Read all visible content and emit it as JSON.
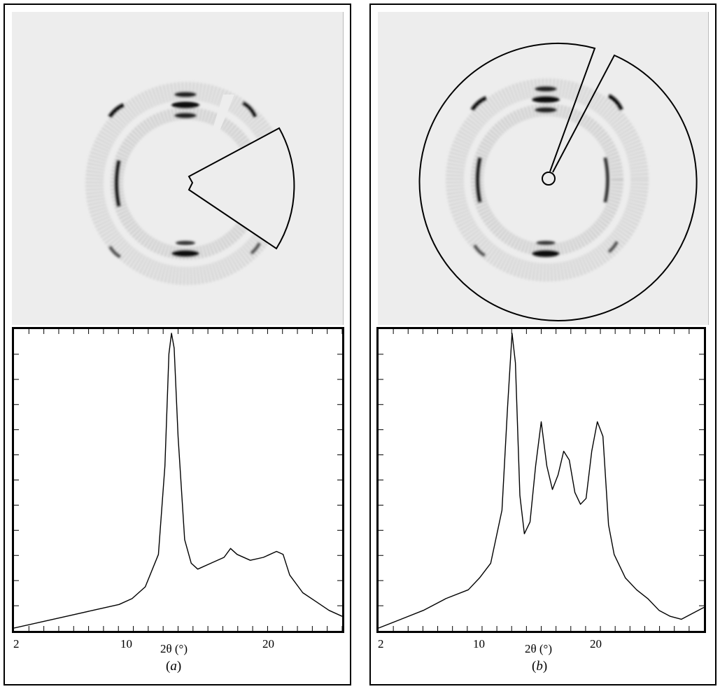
{
  "chart_data": [
    {
      "type": "line",
      "panel_label": "a",
      "xlabel": "2θ (°)",
      "ylabel": "",
      "x_ticks": [
        "2",
        "10",
        "20"
      ],
      "xlim": [
        2,
        27
      ],
      "ylim": [
        0,
        1
      ],
      "series": [
        {
          "x": [
            2,
            4,
            6,
            8,
            10,
            11,
            12,
            13,
            13.5,
            13.8,
            14.0,
            14.2,
            14.5,
            15,
            15.5,
            16,
            17,
            18,
            18.5,
            19,
            20,
            21,
            22,
            22.5,
            23,
            24,
            25,
            26,
            27
          ],
          "y": [
            0.0,
            0.02,
            0.04,
            0.06,
            0.08,
            0.1,
            0.14,
            0.25,
            0.55,
            0.93,
            1.0,
            0.95,
            0.65,
            0.3,
            0.22,
            0.2,
            0.22,
            0.24,
            0.27,
            0.25,
            0.23,
            0.24,
            0.26,
            0.25,
            0.18,
            0.12,
            0.09,
            0.06,
            0.04
          ]
        }
      ]
    },
    {
      "type": "line",
      "panel_label": "b",
      "xlabel": "2θ (°)",
      "ylabel": "",
      "x_ticks": [
        "2",
        "10",
        "20"
      ],
      "xlim": [
        2,
        31
      ],
      "ylim": [
        0,
        1
      ],
      "series": [
        {
          "x": [
            2,
            4,
            6,
            8,
            10,
            11,
            12,
            13,
            13.5,
            13.9,
            14.2,
            14.6,
            15,
            15.5,
            16,
            16.5,
            17,
            17.5,
            18,
            18.5,
            19,
            19.5,
            20,
            20.5,
            21,
            21.5,
            22,
            22.5,
            23,
            24,
            25,
            26,
            27,
            28,
            29,
            30,
            31
          ],
          "y": [
            0.0,
            0.03,
            0.06,
            0.1,
            0.13,
            0.17,
            0.22,
            0.4,
            0.75,
            1.0,
            0.9,
            0.45,
            0.32,
            0.36,
            0.55,
            0.7,
            0.55,
            0.47,
            0.52,
            0.6,
            0.57,
            0.46,
            0.42,
            0.44,
            0.6,
            0.7,
            0.65,
            0.35,
            0.25,
            0.17,
            0.13,
            0.1,
            0.06,
            0.04,
            0.03,
            0.05,
            0.07
          ]
        }
      ]
    }
  ]
}
